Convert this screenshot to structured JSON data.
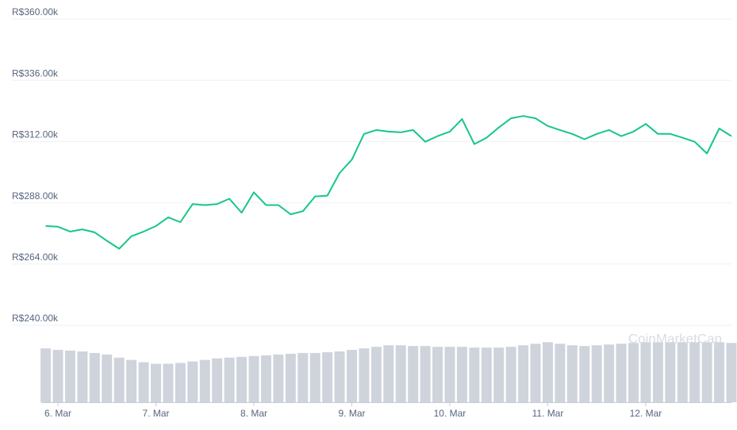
{
  "chart_data": {
    "type": "line",
    "annotation": "CoinMarketCap",
    "categories": [
      null,
      "6. Mar",
      null,
      null,
      null,
      null,
      null,
      null,
      null,
      "7. Mar",
      null,
      null,
      null,
      null,
      null,
      null,
      null,
      "8. Mar",
      null,
      null,
      null,
      null,
      null,
      null,
      null,
      "9. Mar",
      null,
      null,
      null,
      null,
      null,
      null,
      null,
      "10. Mar",
      null,
      null,
      null,
      null,
      null,
      null,
      null,
      "11. Mar",
      null,
      null,
      null,
      null,
      null,
      null,
      null,
      "12. Mar",
      null,
      null,
      null,
      null,
      null,
      null,
      null
    ],
    "series": [
      {
        "color": "#16c784",
        "values": [
          278900,
          278600,
          276700,
          277600,
          276400,
          273100,
          270000,
          274900,
          276700,
          278900,
          282300,
          280400,
          287500,
          287100,
          287500,
          289600,
          284100,
          292100,
          287100,
          287100,
          283500,
          284700,
          290500,
          290800,
          299700,
          304900,
          315000,
          316500,
          315900,
          315600,
          316500,
          311900,
          314100,
          315900,
          320800,
          311000,
          313500,
          317500,
          321100,
          322000,
          321100,
          318100,
          316500,
          315000,
          312900,
          315000,
          316500,
          314100,
          315900,
          318900,
          315000,
          315000,
          313500,
          311900,
          307300,
          317100,
          314100
        ]
      },
      {
        "type": "bar",
        "axis": "y2",
        "color": "#cfd3db",
        "values": [
          70,
          68,
          67,
          66,
          64,
          62,
          58,
          55,
          52,
          50,
          50,
          51,
          53,
          55,
          57,
          58,
          59,
          60,
          61,
          62,
          63,
          64,
          64,
          65,
          66,
          68,
          70,
          72,
          74,
          74,
          73,
          73,
          72,
          72,
          72,
          71,
          71,
          71,
          72,
          74,
          76,
          78,
          76,
          74,
          73,
          74,
          75,
          76,
          77,
          78,
          78,
          78,
          78,
          78,
          78,
          78,
          77
        ]
      }
    ],
    "ylim": [
      240000,
      360000
    ],
    "yticks": [
      {
        "value": 240000,
        "label": "R$240.00k"
      },
      {
        "value": 264000,
        "label": "R$264.00k"
      },
      {
        "value": 288000,
        "label": "R$288.00k"
      },
      {
        "value": 312000,
        "label": "R$312.00k"
      },
      {
        "value": 336000,
        "label": "R$336.00k"
      },
      {
        "value": 360000,
        "label": "R$360.00k"
      }
    ],
    "y2lim": [
      0,
      100
    ],
    "grid": true
  }
}
